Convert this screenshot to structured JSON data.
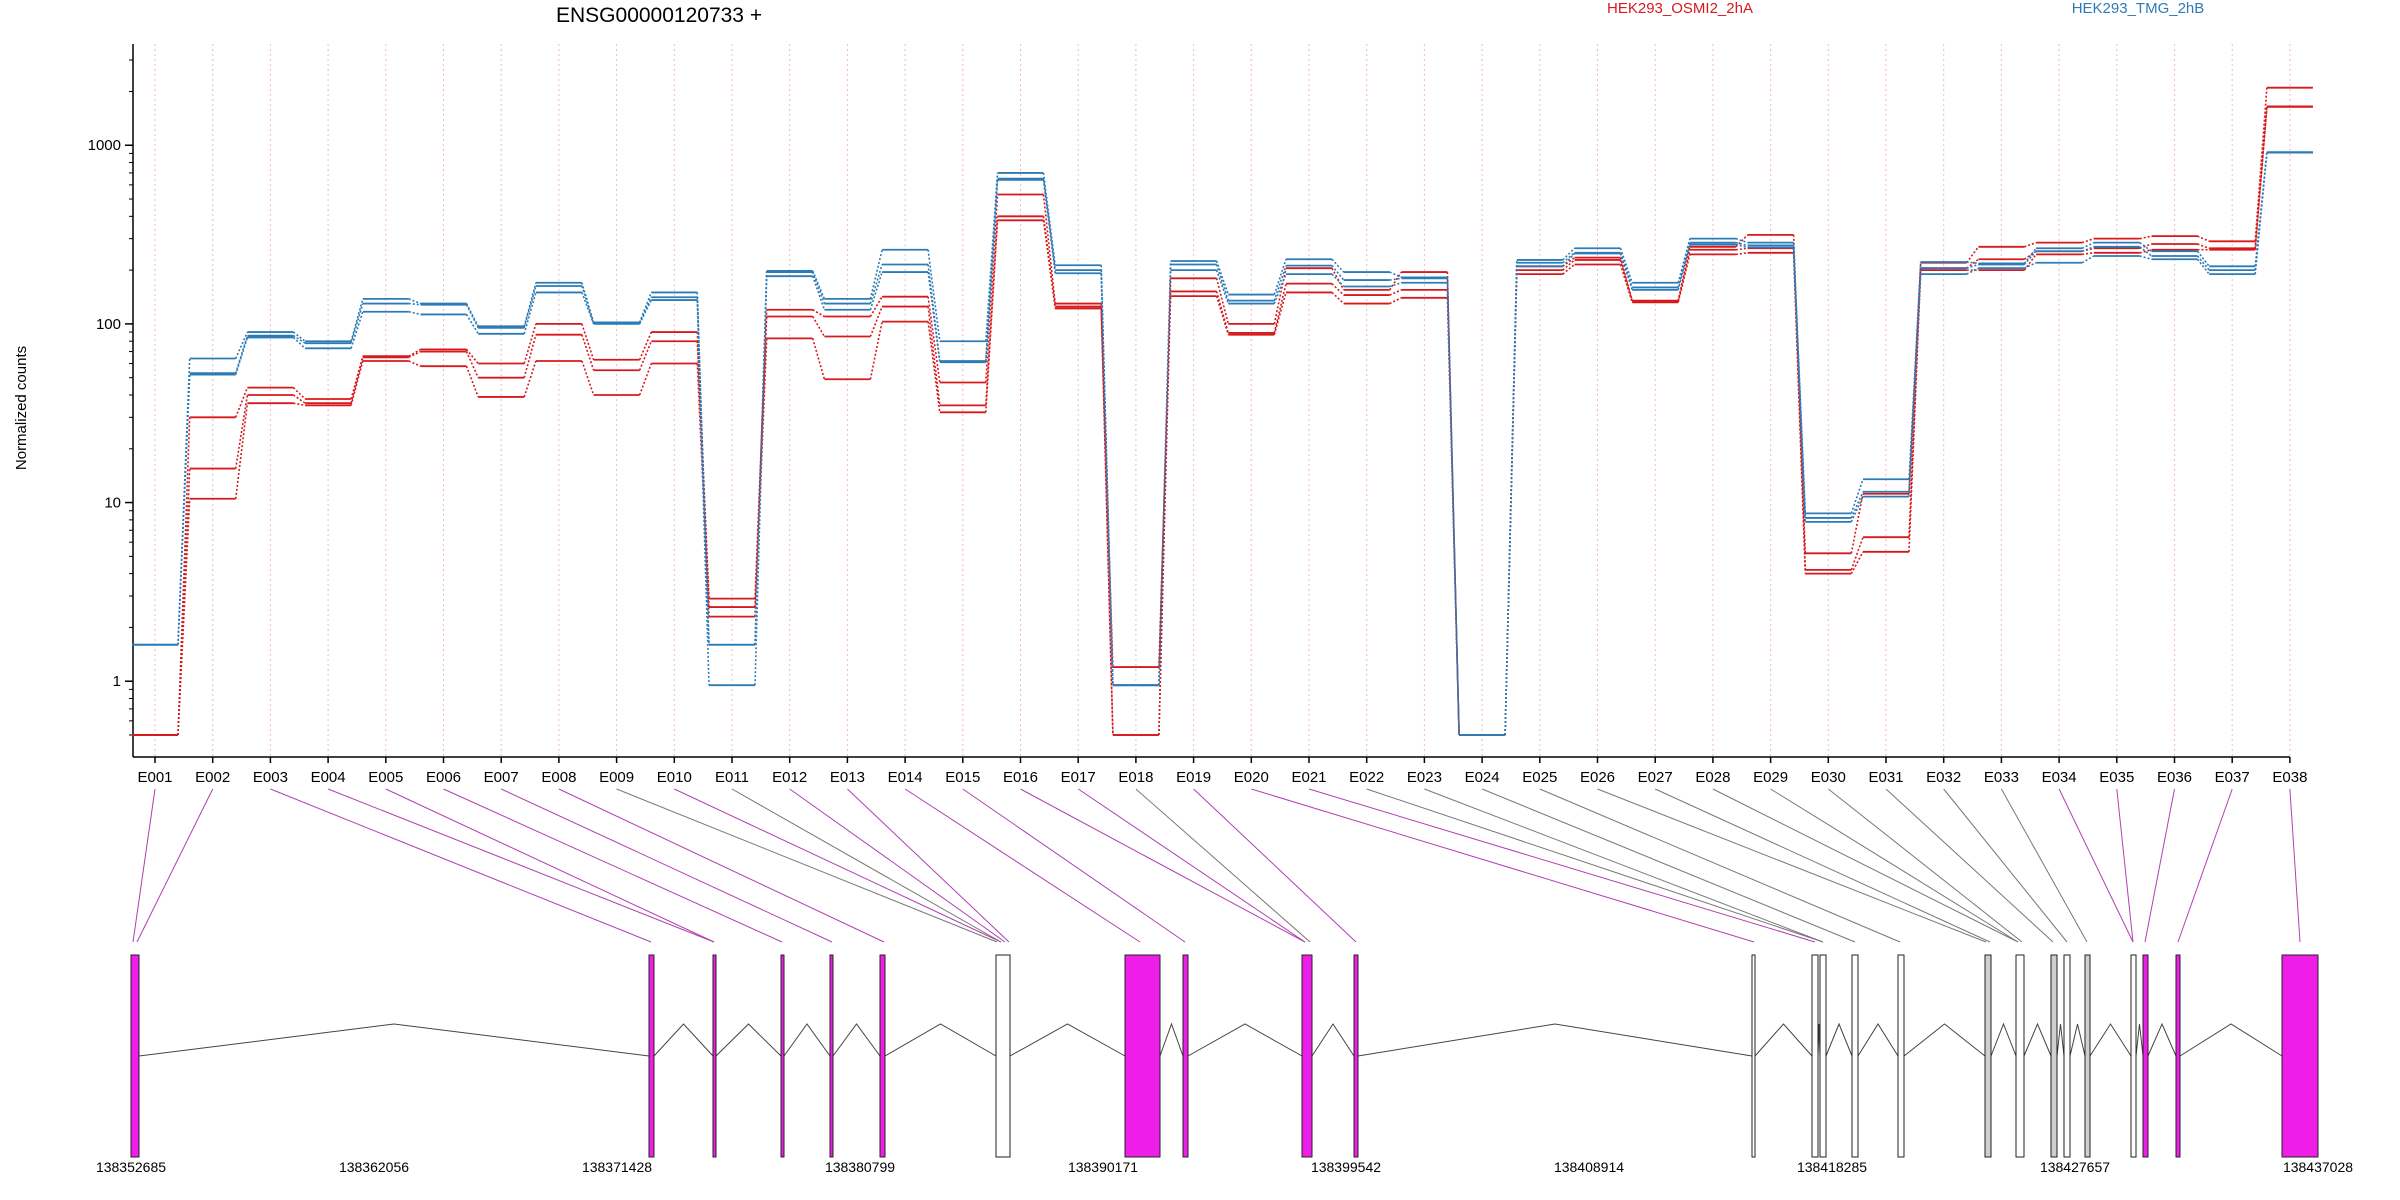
{
  "chart_data": {
    "type": "line",
    "title": "ENSG00000120733 +",
    "ylabel": "Normalized counts",
    "yscale": "log",
    "ylim": [
      0.5,
      3000
    ],
    "yticks": [
      1,
      10,
      100,
      1000
    ],
    "ytick_labels": [
      "1",
      "10",
      "100",
      "1000"
    ],
    "grid": "vertical dotted lines at each exon",
    "legend_position": "top",
    "exons": [
      "E001",
      "E002",
      "E003",
      "E004",
      "E005",
      "E006",
      "E007",
      "E008",
      "E009",
      "E010",
      "E011",
      "E012",
      "E013",
      "E014",
      "E015",
      "E016",
      "E017",
      "E018",
      "E019",
      "E020",
      "E021",
      "E022",
      "E023",
      "E024",
      "E025",
      "E026",
      "E027",
      "E028",
      "E029",
      "E030",
      "E031",
      "E032",
      "E033",
      "E034",
      "E035",
      "E036",
      "E037",
      "E038"
    ],
    "exon_colors": [
      "#ee00ee",
      "#ee00ee",
      "#ee00ee",
      "#ee00ee",
      "#ee00ee",
      "#ee00ee",
      "#ee00ee",
      "#ee00ee",
      "#888888",
      "#ee00ee",
      "#888888",
      "#ee00ee",
      "#ee00ee",
      "#ee00ee",
      "#ee00ee",
      "#ee00ee",
      "#ee00ee",
      "#888888",
      "#ee00ee",
      "#ee00ee",
      "#ee00ee",
      "#888888",
      "#888888",
      "#888888",
      "#888888",
      "#888888",
      "#888888",
      "#888888",
      "#888888",
      "#888888",
      "#888888",
      "#888888",
      "#888888",
      "#ee00ee",
      "#ee00ee",
      "#ee00ee",
      "#ee00ee",
      "#ee00ee"
    ],
    "series": [
      {
        "name": "HEK293_OSMI2_2hA",
        "color": "#d7191c",
        "values": [
          [
            0.5,
            10.5,
            36,
            35,
            62,
            58,
            39,
            62,
            40,
            60,
            2.3,
            83,
            49,
            103,
            32,
            380,
            122,
            1.2,
            143,
            87,
            150,
            130,
            140,
            0.5,
            190,
            215,
            132,
            245,
            250,
            4,
            5.3,
            200,
            200,
            245,
            250,
            260,
            260,
            1650
          ],
          [
            0.5,
            15.5,
            40,
            36,
            65,
            70,
            50,
            87,
            55,
            80,
            2.6,
            110,
            85,
            125,
            35,
            400,
            125,
            0.5,
            152,
            89,
            168,
            145,
            155,
            0.5,
            200,
            228,
            134,
            260,
            265,
            4.2,
            6.4,
            205,
            230,
            255,
            265,
            280,
            265,
            1640
          ],
          [
            0.5,
            30,
            44,
            38,
            66,
            72,
            60,
            100,
            63,
            90,
            2.9,
            120,
            110,
            142,
            47,
            530,
            130,
            0.5,
            180,
            100,
            205,
            155,
            195,
            0.5,
            210,
            235,
            135,
            270,
            315,
            5.2,
            11.2,
            220,
            270,
            285,
            300,
            310,
            290,
            2100
          ]
        ]
      },
      {
        "name": "HEK293_TMG_2hB",
        "color": "#2c7bb6",
        "values": [
          [
            1.6,
            52,
            84,
            73,
            117,
            113,
            88,
            150,
            100,
            136,
            0.95,
            185,
            120,
            195,
            61,
            640,
            192,
            0.95,
            200,
            130,
            190,
            162,
            170,
            0.5,
            210,
            248,
            155,
            278,
            268,
            7.8,
            10.8,
            190,
            205,
            220,
            240,
            230,
            190,
            910
          ],
          [
            1.6,
            53,
            86,
            78,
            130,
            128,
            95,
            163,
            101,
            141,
            1.6,
            195,
            130,
            215,
            62,
            650,
            200,
            0.95,
            215,
            135,
            212,
            176,
            180,
            0.5,
            220,
            250,
            160,
            285,
            275,
            8.2,
            11.5,
            205,
            215,
            255,
            270,
            240,
            200,
            910
          ],
          [
            1.6,
            64,
            90,
            80,
            138,
            130,
            97,
            170,
            102,
            150,
            1.6,
            198,
            138,
            260,
            80,
            700,
            213,
            0.95,
            225,
            146,
            230,
            195,
            182,
            0.5,
            228,
            265,
            170,
            300,
            285,
            8.7,
            13.5,
            222,
            218,
            265,
            285,
            255,
            210,
            915
          ]
        ]
      }
    ],
    "gene_model": {
      "coord_labels": [
        "138352685",
        "138362056",
        "138371428",
        "138380799",
        "138390171",
        "138399542",
        "138408914",
        "138418285",
        "138427657",
        "138437028"
      ]
    }
  }
}
